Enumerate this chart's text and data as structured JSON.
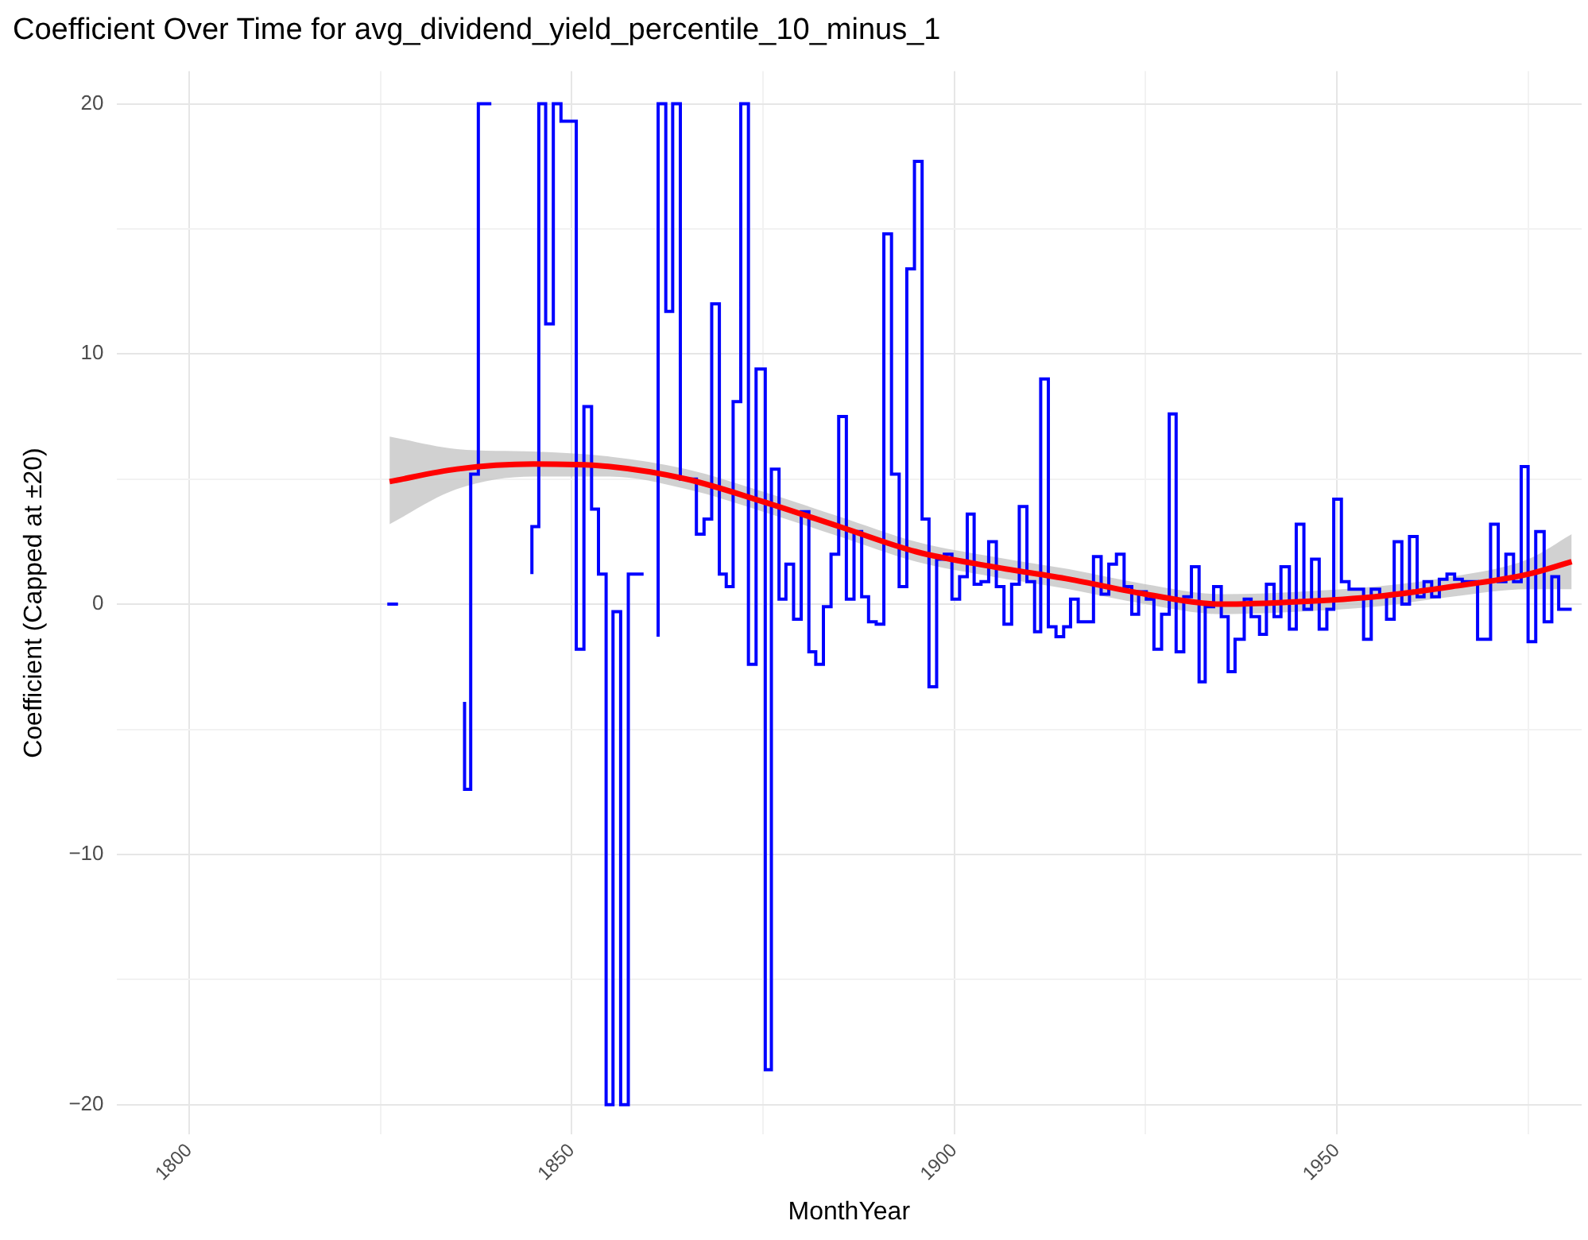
{
  "chart_data": {
    "type": "step",
    "title": "Coefficient Over Time for avg_dividend_yield_percentile_10_minus_1",
    "xlabel": "MonthYear",
    "ylabel": "Coefficient (Capped at ±20)",
    "legend": false,
    "grid": true,
    "xlim": [
      1790.5,
      1982
    ],
    "ylim": [
      -21.2,
      21.3
    ],
    "xticks": [
      1800,
      {
        "value": 1825,
        "label": null
      },
      1850,
      {
        "value": 1875,
        "label": null
      },
      1900,
      {
        "value": 1925,
        "label": null
      },
      1950,
      {
        "value": 1975,
        "label": null
      }
    ],
    "yticks": [
      -20,
      {
        "value": -15,
        "label": null
      },
      -10,
      {
        "value": -5,
        "label": null
      },
      0,
      {
        "value": 5,
        "label": null
      },
      10,
      {
        "value": 15,
        "label": null
      },
      20
    ],
    "series": [
      {
        "color": "#0000ff",
        "x": [
          1825.9,
          1827.3,
          1827.4,
          1836.0,
          1836.8,
          1837.8,
          1838.8,
          1839.5,
          1839.6,
          1844.8,
          1845.7,
          1846.6,
          1847.6,
          1848.6,
          1850.6,
          1851.6,
          1852.6,
          1853.5,
          1854.5,
          1855.4,
          1856.4,
          1857.4,
          1858.4,
          1859.4,
          1859.5,
          1861.3,
          1862.3,
          1863.2,
          1864.2,
          1866.3,
          1867.3,
          1868.3,
          1869.3,
          1870.2,
          1871.1,
          1872.1,
          1873.1,
          1874.1,
          1875.3,
          1876.1,
          1877.1,
          1878.0,
          1879.0,
          1880.0,
          1881.0,
          1881.9,
          1882.9,
          1883.9,
          1884.9,
          1885.9,
          1886.9,
          1887.9,
          1888.8,
          1889.8,
          1890.8,
          1891.8,
          1892.8,
          1893.8,
          1894.8,
          1895.8,
          1896.7,
          1897.7,
          1898.7,
          1899.7,
          1900.7,
          1901.7,
          1902.6,
          1903.5,
          1904.5,
          1905.5,
          1906.5,
          1907.5,
          1908.5,
          1909.5,
          1910.5,
          1911.3,
          1912.3,
          1913.3,
          1914.3,
          1915.2,
          1916.2,
          1918.2,
          1919.2,
          1920.2,
          1921.2,
          1922.2,
          1923.2,
          1924.1,
          1925.1,
          1926.1,
          1927.1,
          1928.1,
          1929.0,
          1930.0,
          1931.0,
          1932.0,
          1932.8,
          1933.9,
          1934.9,
          1935.8,
          1936.7,
          1937.9,
          1938.8,
          1939.9,
          1940.8,
          1941.8,
          1942.7,
          1943.8,
          1944.7,
          1945.7,
          1946.7,
          1947.7,
          1948.7,
          1949.6,
          1950.6,
          1951.6,
          1953.5,
          1954.5,
          1955.6,
          1956.5,
          1957.5,
          1958.5,
          1959.5,
          1960.5,
          1961.4,
          1962.4,
          1963.4,
          1964.4,
          1965.4,
          1966.4,
          1968.4,
          1970.1,
          1971.1,
          1972.1,
          1973.1,
          1974.1,
          1975.0,
          1976.0,
          1977.1,
          1978.1,
          1979.0,
          1980.0,
          1980.7
        ],
        "values": [
          0,
          0,
          null,
          -3.9,
          -7.4,
          5.2,
          20,
          20,
          null,
          1.2,
          3.1,
          20,
          11.2,
          20,
          19.3,
          -1.8,
          7.9,
          3.8,
          1.2,
          -20,
          -0.3,
          -20,
          1.2,
          1.2,
          null,
          -1.3,
          20,
          11.7,
          20,
          5.0,
          2.8,
          3.4,
          12.0,
          1.2,
          0.7,
          8.1,
          20,
          -2.4,
          9.4,
          -18.6,
          5.4,
          0.2,
          1.6,
          -0.6,
          3.7,
          -1.9,
          -2.4,
          -0.1,
          2.0,
          7.5,
          0.2,
          2.9,
          0.3,
          -0.7,
          -0.8,
          14.8,
          5.2,
          0.7,
          13.4,
          17.7,
          3.4,
          -3.3,
          1.8,
          2.0,
          0.2,
          1.1,
          3.6,
          0.8,
          0.9,
          2.5,
          0.7,
          -0.8,
          0.8,
          3.9,
          0.9,
          -1.1,
          9.0,
          -0.9,
          -1.3,
          -0.9,
          0.2,
          -0.7,
          1.9,
          0.4,
          1.6,
          2.0,
          0.7,
          -0.4,
          0.5,
          0.2,
          -1.8,
          -0.4,
          7.6,
          -1.9,
          0.3,
          1.5,
          -3.1,
          -0.1,
          0.7,
          -0.5,
          -2.7,
          -1.4,
          0.2,
          -0.5,
          -1.2,
          0.8,
          -0.5,
          1.5,
          -1.0,
          3.2,
          -0.2,
          1.8,
          -1.0,
          -0.2,
          4.2,
          0.9,
          0.6,
          -1.4,
          0.6,
          0.3,
          -0.6,
          2.5,
          0,
          2.7,
          0.3,
          0.9,
          0.3,
          1.0,
          1.2,
          1.0,
          0.9,
          -1.4,
          3.2,
          0.9,
          2.0,
          0.9,
          5.5,
          -1.5,
          2.9,
          -0.7,
          1.1,
          -0.2,
          -0.2
        ]
      },
      {
        "type": "line",
        "color": "#ff0000",
        "x": [
          1826.2,
          1835,
          1845,
          1855,
          1865,
          1875,
          1885,
          1895,
          1905,
          1915,
          1925,
          1935,
          1945,
          1955,
          1965,
          1975,
          1980.7
        ],
        "values": [
          4.9,
          5.4,
          5.6,
          5.5,
          5.0,
          4.1,
          3.1,
          2.1,
          1.5,
          1.0,
          0.4,
          0.0,
          0.1,
          0.3,
          0.7,
          1.2,
          1.7
        ],
        "lower": [
          3.2,
          4.6,
          5.1,
          5.1,
          4.6,
          3.7,
          2.7,
          1.7,
          1.1,
          0.6,
          0.0,
          -0.4,
          -0.3,
          -0.1,
          0.3,
          0.6,
          0.6
        ],
        "upper": [
          6.7,
          6.2,
          6.1,
          5.9,
          5.4,
          4.5,
          3.5,
          2.5,
          1.9,
          1.4,
          0.8,
          0.4,
          0.5,
          0.7,
          1.1,
          1.8,
          2.8
        ]
      }
    ]
  }
}
